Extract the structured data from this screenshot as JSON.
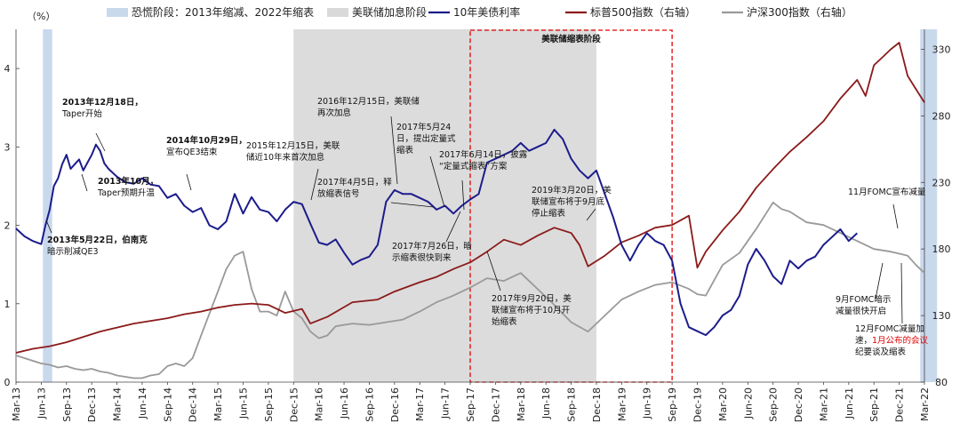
{
  "chart_data": {
    "type": "line",
    "y_left_unit": "（%）",
    "y_left_ticks": [
      0,
      1,
      2,
      3,
      4
    ],
    "y_left_range": [
      0,
      4.5
    ],
    "y_right_ticks": [
      80,
      130,
      180,
      230,
      280,
      330
    ],
    "y_right_range": [
      80,
      345
    ],
    "x_tick_labels": [
      "Mar-13",
      "Jun-13",
      "Sep-13",
      "Dec-13",
      "Mar-14",
      "Jun-14",
      "Sep-14",
      "Dec-14",
      "Mar-15",
      "Jun-15",
      "Sep-15",
      "Dec-15",
      "Mar-16",
      "Jun-16",
      "Sep-16",
      "Dec-16",
      "Mar-17",
      "Jun-17",
      "Sep-17",
      "Dec-17",
      "Mar-18",
      "Jun-18",
      "Sep-18",
      "Dec-18",
      "Mar-19",
      "Jun-19",
      "Sep-19",
      "Dec-19",
      "Mar-20",
      "Jun-20",
      "Sep-20",
      "Dec-20",
      "Mar-21",
      "Jun-21",
      "Sep-21",
      "Dec-21",
      "Mar-22"
    ],
    "legend": [
      {
        "key": "panic",
        "label": "恐慌阶段：2013年缩减、2022年缩表",
        "color": "#c9d9ec",
        "kind": "band"
      },
      {
        "key": "hike",
        "label": "美联储加息阶段",
        "color": "#d9d9d9",
        "kind": "band"
      },
      {
        "key": "ust10y",
        "label": "10年美债利率",
        "color": "#1c1c8c",
        "kind": "line"
      },
      {
        "key": "spx",
        "label": "标普500指数（右轴）",
        "color": "#8b1a1a",
        "kind": "line"
      },
      {
        "key": "csi300",
        "label": "沪深300指数（右轴）",
        "color": "#999999",
        "kind": "line"
      }
    ],
    "bands": [
      {
        "type": "panic",
        "x_start": 3.2,
        "x_end": 4.3
      },
      {
        "type": "hike",
        "x_start": 33.0,
        "x_end": 69.0
      },
      {
        "type": "panic",
        "x_start": 107.5,
        "x_end": 109.5
      }
    ],
    "qt_box": {
      "label": "美联储缩表阶段",
      "x_start": 54.0,
      "x_end": 78.0
    },
    "series": [
      {
        "key": "ust10y",
        "axis": "left",
        "points": [
          [
            0,
            1.96
          ],
          [
            1,
            1.86
          ],
          [
            2,
            1.8
          ],
          [
            3,
            1.76
          ],
          [
            3.5,
            2.0
          ],
          [
            4,
            2.2
          ],
          [
            4.5,
            2.5
          ],
          [
            5,
            2.6
          ],
          [
            5.5,
            2.78
          ],
          [
            6,
            2.9
          ],
          [
            6.5,
            2.72
          ],
          [
            7,
            2.78
          ],
          [
            7.5,
            2.84
          ],
          [
            8,
            2.7
          ],
          [
            8.5,
            2.8
          ],
          [
            9,
            2.9
          ],
          [
            9.5,
            3.03
          ],
          [
            10,
            2.95
          ],
          [
            10.5,
            2.79
          ],
          [
            11,
            2.72
          ],
          [
            12,
            2.62
          ],
          [
            13,
            2.55
          ],
          [
            14,
            2.53
          ],
          [
            15,
            2.6
          ],
          [
            16,
            2.52
          ],
          [
            17,
            2.5
          ],
          [
            18,
            2.35
          ],
          [
            19,
            2.4
          ],
          [
            20,
            2.25
          ],
          [
            21,
            2.17
          ],
          [
            22,
            2.22
          ],
          [
            23,
            2.0
          ],
          [
            24,
            1.95
          ],
          [
            25,
            2.05
          ],
          [
            26,
            2.4
          ],
          [
            27,
            2.15
          ],
          [
            28,
            2.36
          ],
          [
            29,
            2.2
          ],
          [
            30,
            2.17
          ],
          [
            31,
            2.05
          ],
          [
            32,
            2.2
          ],
          [
            33,
            2.3
          ],
          [
            34,
            2.27
          ],
          [
            35,
            2.02
          ],
          [
            36,
            1.78
          ],
          [
            37,
            1.75
          ],
          [
            38,
            1.82
          ],
          [
            39,
            1.65
          ],
          [
            40,
            1.5
          ],
          [
            41,
            1.56
          ],
          [
            42,
            1.6
          ],
          [
            43,
            1.75
          ],
          [
            44,
            2.3
          ],
          [
            45,
            2.45
          ],
          [
            46,
            2.4
          ],
          [
            47,
            2.4
          ],
          [
            48,
            2.35
          ],
          [
            49,
            2.3
          ],
          [
            50,
            2.2
          ],
          [
            51,
            2.25
          ],
          [
            52,
            2.15
          ],
          [
            53,
            2.25
          ],
          [
            54,
            2.33
          ],
          [
            55,
            2.4
          ],
          [
            56,
            2.8
          ],
          [
            57,
            2.85
          ],
          [
            58,
            2.9
          ],
          [
            59,
            2.95
          ],
          [
            60,
            3.05
          ],
          [
            61,
            2.95
          ],
          [
            62,
            3.0
          ],
          [
            63,
            3.05
          ],
          [
            64,
            3.22
          ],
          [
            65,
            3.1
          ],
          [
            66,
            2.85
          ],
          [
            67,
            2.7
          ],
          [
            68,
            2.6
          ],
          [
            69,
            2.7
          ],
          [
            70,
            2.4
          ],
          [
            71,
            2.1
          ],
          [
            72,
            1.75
          ],
          [
            73,
            1.55
          ],
          [
            74,
            1.75
          ],
          [
            75,
            1.9
          ],
          [
            76,
            1.8
          ],
          [
            77,
            1.75
          ],
          [
            78,
            1.55
          ],
          [
            79,
            1.0
          ],
          [
            80,
            0.7
          ],
          [
            81,
            0.65
          ],
          [
            82,
            0.6
          ],
          [
            83,
            0.7
          ],
          [
            84,
            0.85
          ],
          [
            85,
            0.92
          ],
          [
            86,
            1.1
          ],
          [
            87,
            1.5
          ],
          [
            88,
            1.7
          ],
          [
            89,
            1.55
          ],
          [
            90,
            1.35
          ],
          [
            91,
            1.25
          ],
          [
            92,
            1.55
          ],
          [
            93,
            1.45
          ],
          [
            94,
            1.55
          ],
          [
            95,
            1.6
          ],
          [
            96,
            1.75
          ],
          [
            97,
            1.85
          ],
          [
            98,
            1.95
          ],
          [
            99,
            1.8
          ],
          [
            100,
            1.9
          ]
        ]
      },
      {
        "key": "spx",
        "axis": "right",
        "points": [
          [
            0,
            102
          ],
          [
            2,
            105
          ],
          [
            4,
            107
          ],
          [
            6,
            110
          ],
          [
            8,
            114
          ],
          [
            10,
            118
          ],
          [
            12,
            121
          ],
          [
            14,
            124
          ],
          [
            16,
            126
          ],
          [
            18,
            128
          ],
          [
            20,
            131
          ],
          [
            22,
            133
          ],
          [
            24,
            136
          ],
          [
            26,
            138
          ],
          [
            28,
            139
          ],
          [
            30,
            138
          ],
          [
            32,
            132
          ],
          [
            34,
            135
          ],
          [
            35,
            124
          ],
          [
            37,
            129
          ],
          [
            40,
            140
          ],
          [
            43,
            142
          ],
          [
            45,
            148
          ],
          [
            48,
            155
          ],
          [
            50,
            159
          ],
          [
            52,
            165
          ],
          [
            54,
            170
          ],
          [
            56,
            178
          ],
          [
            58,
            187
          ],
          [
            60,
            183
          ],
          [
            62,
            190
          ],
          [
            64,
            196
          ],
          [
            66,
            192
          ],
          [
            67,
            183
          ],
          [
            68,
            167
          ],
          [
            70,
            175
          ],
          [
            72,
            185
          ],
          [
            74,
            190
          ],
          [
            76,
            196
          ],
          [
            78,
            198
          ],
          [
            80,
            205
          ],
          [
            81,
            166
          ],
          [
            82,
            178
          ],
          [
            84,
            194
          ],
          [
            86,
            208
          ],
          [
            88,
            226
          ],
          [
            90,
            240
          ],
          [
            92,
            253
          ],
          [
            94,
            264
          ],
          [
            96,
            276
          ],
          [
            98,
            293
          ],
          [
            100,
            307
          ],
          [
            101,
            295
          ],
          [
            102,
            318
          ],
          [
            103,
            324
          ],
          [
            104,
            330
          ],
          [
            105,
            335
          ],
          [
            106,
            310
          ],
          [
            107,
            300
          ],
          [
            108,
            290
          ]
        ]
      },
      {
        "key": "csi300",
        "axis": "right",
        "points": [
          [
            0,
            100
          ],
          [
            1,
            98
          ],
          [
            2,
            96
          ],
          [
            3,
            94
          ],
          [
            4,
            93
          ],
          [
            5,
            91
          ],
          [
            6,
            92
          ],
          [
            7,
            90
          ],
          [
            8,
            89
          ],
          [
            9,
            90
          ],
          [
            10,
            88
          ],
          [
            11,
            87
          ],
          [
            12,
            85
          ],
          [
            13,
            84
          ],
          [
            14,
            83
          ],
          [
            15,
            83
          ],
          [
            16,
            85
          ],
          [
            17,
            86
          ],
          [
            18,
            92
          ],
          [
            19,
            94
          ],
          [
            20,
            92
          ],
          [
            21,
            98
          ],
          [
            22,
            115
          ],
          [
            24,
            148
          ],
          [
            25,
            165
          ],
          [
            26,
            175
          ],
          [
            27,
            178
          ],
          [
            28,
            150
          ],
          [
            29,
            133
          ],
          [
            30,
            133
          ],
          [
            31,
            130
          ],
          [
            32,
            148
          ],
          [
            33,
            133
          ],
          [
            34,
            128
          ],
          [
            35,
            118
          ],
          [
            36,
            113
          ],
          [
            37,
            115
          ],
          [
            38,
            122
          ],
          [
            40,
            124
          ],
          [
            42,
            123
          ],
          [
            44,
            125
          ],
          [
            46,
            127
          ],
          [
            48,
            133
          ],
          [
            50,
            140
          ],
          [
            52,
            145
          ],
          [
            54,
            151
          ],
          [
            56,
            158
          ],
          [
            58,
            156
          ],
          [
            60,
            162
          ],
          [
            62,
            150
          ],
          [
            64,
            138
          ],
          [
            66,
            125
          ],
          [
            68,
            118
          ],
          [
            70,
            130
          ],
          [
            72,
            142
          ],
          [
            74,
            148
          ],
          [
            76,
            153
          ],
          [
            78,
            155
          ],
          [
            80,
            150
          ],
          [
            81,
            146
          ],
          [
            82,
            145
          ],
          [
            84,
            168
          ],
          [
            86,
            177
          ],
          [
            88,
            195
          ],
          [
            90,
            215
          ],
          [
            91,
            210
          ],
          [
            92,
            208
          ],
          [
            94,
            200
          ],
          [
            96,
            198
          ],
          [
            98,
            192
          ],
          [
            100,
            186
          ],
          [
            102,
            180
          ],
          [
            104,
            178
          ],
          [
            106,
            175
          ],
          [
            107,
            168
          ],
          [
            108,
            162
          ]
        ]
      }
    ],
    "annotations": [
      {
        "lines": [
          "2013年12月18日，",
          "Taper开始"
        ],
        "color": "#111111",
        "bold": [
          true,
          false
        ]
      },
      {
        "lines": [
          "2013年10月，",
          "Taper预期升温"
        ],
        "color": "#111111",
        "bold": [
          true,
          false
        ]
      },
      {
        "lines": [
          "2013年5月22日，伯南克",
          "暗示削减QE3"
        ],
        "color": "#e00000",
        "bold": [
          true,
          false
        ]
      },
      {
        "lines": [
          "2014年10月29日，",
          "宣布QE3结束"
        ],
        "color": "#111111",
        "bold": [
          true,
          false
        ]
      },
      {
        "lines": [
          "2015年12月15日，美联",
          "储近10年来首次加息"
        ],
        "color": "#111111",
        "bold": [
          false,
          false
        ]
      },
      {
        "lines": [
          "2016年12月15日，美联储",
          "再次加息"
        ],
        "color": "#111111",
        "bold": [
          false,
          false
        ]
      },
      {
        "lines": [
          "2017年5月24",
          "日，提出定量式",
          "缩表"
        ],
        "color": "#111111",
        "bold": [
          false,
          false
        ]
      },
      {
        "lines": [
          "2017年6月14日，披露",
          "“定量式缩表”方案"
        ],
        "color": "#111111",
        "bold": [
          false,
          false
        ]
      },
      {
        "lines": [
          "2017年4月5日，释",
          "放缩表信号"
        ],
        "color": "#e00000",
        "bold": [
          false,
          false
        ]
      },
      {
        "lines": [
          "2017年7月26日，暗",
          "示缩表很快到来"
        ],
        "color": "#111111",
        "bold": [
          false,
          false
        ]
      },
      {
        "lines": [
          "2017年9月20日，美",
          "联储宣布将于10月开",
          "始缩表"
        ],
        "color": "#111111",
        "bold": [
          false,
          false
        ]
      },
      {
        "lines": [
          "2019年3月20日，美",
          "联储宣布将于9月底",
          "停止缩表"
        ],
        "color": "#111111",
        "bold": [
          false,
          false
        ]
      },
      {
        "lines": [
          "11月FOMC宣布减量"
        ],
        "color": "#111111",
        "bold": [
          false
        ]
      },
      {
        "lines": [
          "9月FOMC暗示",
          "减量很快开启"
        ],
        "color": "#111111",
        "bold": [
          false,
          false
        ]
      },
      {
        "lines": [
          "12月FOMC减量加",
          "速，1月公布的会议",
          "纪要谈及缩表"
        ],
        "color": "#111111",
        "bold": [
          false,
          false,
          false
        ],
        "red_tail": "1月公布的会议纪要谈及缩表"
      }
    ]
  }
}
